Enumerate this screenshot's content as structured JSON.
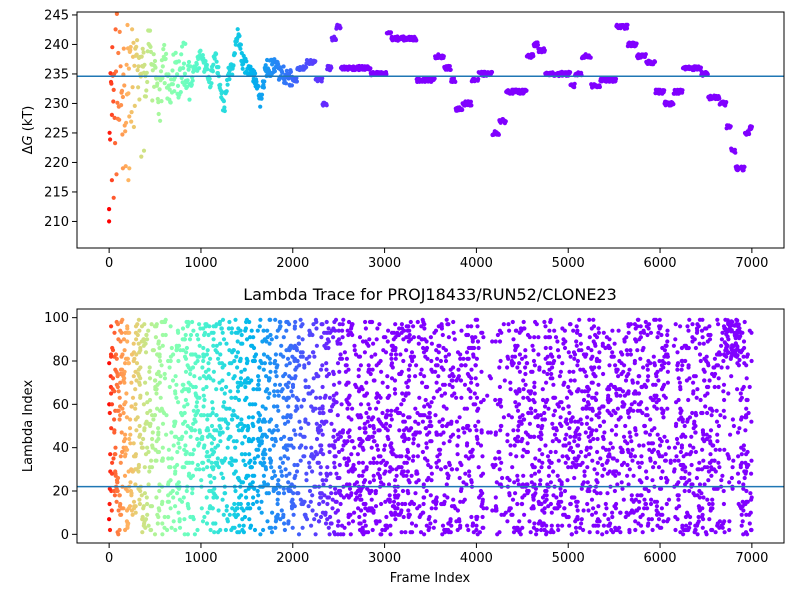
{
  "chart_data": [
    {
      "type": "scatter",
      "title": "",
      "xlabel": "",
      "ylabel_symbol": "Δ",
      "ylabel_italic": "G",
      "ylabel_rest": " (kT)",
      "xlim": [
        -350,
        7350
      ],
      "ylim": [
        205.5,
        245.5
      ],
      "xticks": [
        0,
        1000,
        2000,
        3000,
        4000,
        5000,
        6000,
        7000
      ],
      "yticks": [
        210,
        215,
        220,
        225,
        230,
        235,
        240,
        245
      ],
      "hline": {
        "y": 234.6,
        "color": "#1f77b4"
      },
      "colormap": "rainbow (frame index: early = red, late = violet)",
      "legend": "none",
      "grid": false,
      "trace_points": [
        [
          0,
          220
        ],
        [
          20,
          230
        ],
        [
          40,
          240
        ],
        [
          60,
          225
        ],
        [
          80,
          245
        ],
        [
          100,
          232
        ],
        [
          120,
          238
        ],
        [
          140,
          228
        ],
        [
          160,
          235
        ],
        [
          180,
          222
        ],
        [
          200,
          240
        ],
        [
          220,
          230
        ],
        [
          250,
          236
        ],
        [
          280,
          229
        ],
        [
          300,
          240
        ],
        [
          330,
          233
        ],
        [
          360,
          239
        ],
        [
          400,
          231
        ],
        [
          430,
          243
        ],
        [
          470,
          234
        ],
        [
          510,
          238
        ],
        [
          550,
          230
        ],
        [
          600,
          237
        ],
        [
          650,
          232
        ],
        [
          700,
          236
        ],
        [
          760,
          234
        ],
        [
          820,
          237
        ],
        [
          880,
          234
        ],
        [
          940,
          236
        ],
        [
          1000,
          238
        ],
        [
          1050,
          236
        ],
        [
          1100,
          233
        ],
        [
          1150,
          239
        ],
        [
          1200,
          234
        ],
        [
          1250,
          229
        ],
        [
          1300,
          235
        ],
        [
          1350,
          236
        ],
        [
          1400,
          243
        ],
        [
          1450,
          237
        ],
        [
          1500,
          236
        ],
        [
          1550,
          236
        ],
        [
          1600,
          234
        ],
        [
          1650,
          230
        ],
        [
          1700,
          236
        ],
        [
          1800,
          236
        ],
        [
          1900,
          235
        ],
        [
          2000,
          234
        ],
        [
          2100,
          236
        ],
        [
          2200,
          237
        ],
        [
          2300,
          234
        ],
        [
          2350,
          230
        ],
        [
          2400,
          236
        ],
        [
          2450,
          241
        ],
        [
          2500,
          243
        ],
        [
          2550,
          236
        ],
        [
          2700,
          236
        ],
        [
          2800,
          236
        ],
        [
          2900,
          235
        ],
        [
          3000,
          235
        ],
        [
          3050,
          242
        ],
        [
          3100,
          241
        ],
        [
          3200,
          241
        ],
        [
          3300,
          241
        ],
        [
          3400,
          234
        ],
        [
          3500,
          234
        ],
        [
          3600,
          238
        ],
        [
          3700,
          236
        ],
        [
          3750,
          234
        ],
        [
          3800,
          229
        ],
        [
          3900,
          230
        ],
        [
          4000,
          234
        ],
        [
          4050,
          235
        ],
        [
          4150,
          235
        ],
        [
          4200,
          225
        ],
        [
          4300,
          227
        ],
        [
          4350,
          232
        ],
        [
          4400,
          232
        ],
        [
          4500,
          232
        ],
        [
          4600,
          238
        ],
        [
          4650,
          240
        ],
        [
          4700,
          239
        ],
        [
          4800,
          235
        ],
        [
          4900,
          235
        ],
        [
          5000,
          235
        ],
        [
          5050,
          233
        ],
        [
          5100,
          235
        ],
        [
          5200,
          238
        ],
        [
          5300,
          233
        ],
        [
          5400,
          234
        ],
        [
          5500,
          234
        ],
        [
          5550,
          243
        ],
        [
          5600,
          243
        ],
        [
          5700,
          240
        ],
        [
          5800,
          238
        ],
        [
          5900,
          237
        ],
        [
          6000,
          232
        ],
        [
          6100,
          230
        ],
        [
          6200,
          232
        ],
        [
          6300,
          236
        ],
        [
          6400,
          236
        ],
        [
          6500,
          235
        ],
        [
          6550,
          231
        ],
        [
          6600,
          231
        ],
        [
          6700,
          230
        ],
        [
          6750,
          226
        ],
        [
          6800,
          222
        ],
        [
          6850,
          219
        ],
        [
          6900,
          219
        ],
        [
          6950,
          225
        ],
        [
          7000,
          226
        ]
      ],
      "early_outliers": [
        [
          0,
          210
        ],
        [
          50,
          214
        ],
        [
          30,
          217
        ],
        [
          80,
          218
        ],
        [
          150,
          219
        ],
        [
          210,
          217
        ],
        [
          220,
          219
        ],
        [
          350,
          221
        ],
        [
          380,
          222
        ]
      ]
    },
    {
      "type": "scatter",
      "title": "Lambda Trace for PROJ18433/RUN52/CLONE23",
      "xlabel": "Frame Index",
      "ylabel": "Lambda Index",
      "xlim": [
        -350,
        7350
      ],
      "ylim": [
        -4,
        104
      ],
      "xticks": [
        0,
        1000,
        2000,
        3000,
        4000,
        5000,
        6000,
        7000
      ],
      "yticks": [
        0,
        20,
        40,
        60,
        80,
        100
      ],
      "hline": {
        "y": 22,
        "color": "#1f77b4"
      },
      "colormap": "rainbow (frame index: early = red, late = violet)",
      "legend": "none",
      "grid": false,
      "approx_points": 4000,
      "sparse_regions_frames": [
        [
          4080,
          4200
        ],
        [
          4280,
          4330
        ],
        [
          6100,
          6150
        ]
      ]
    }
  ]
}
